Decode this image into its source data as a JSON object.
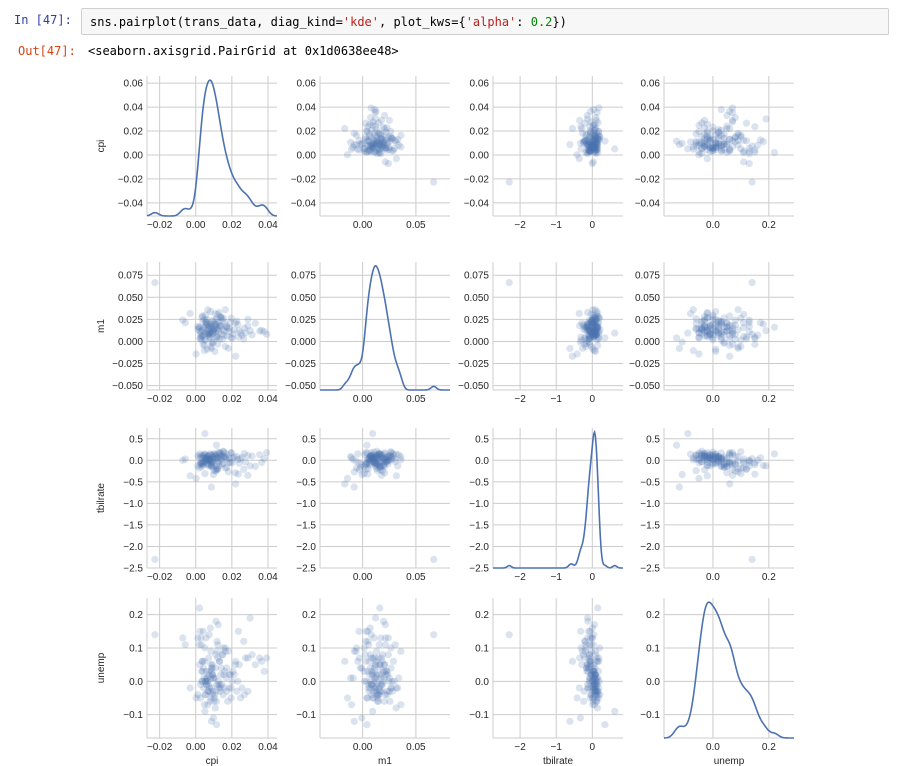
{
  "notebook": {
    "in_prompt": "In  [47]:",
    "code": {
      "p1": "sns.pairplot(trans_data, diag_kind=",
      "s1": "'kde'",
      "p2": ", plot_kws={",
      "s2": "'alpha'",
      "p3": ": ",
      "n1": "0.2",
      "p4": "})"
    },
    "out_prompt": "Out[47]:",
    "output_text": "<seaborn.axisgrid.PairGrid at 0x1d0638ee48>"
  },
  "chart_data": {
    "type": "scatter",
    "variables": [
      "cpi",
      "m1",
      "tbilrate",
      "unemp"
    ],
    "xlabels": [
      "cpi",
      "m1",
      "tbilrate",
      "unemp"
    ],
    "ylabels": [
      "cpi",
      "m1",
      "tbilrate",
      "unemp"
    ],
    "diag_kind": "kde",
    "alpha": 0.2,
    "grid": true,
    "colors": {
      "points": "#4c72b0",
      "line": "#4c72b0",
      "grid": "#cccccc",
      "spine": "#cccccc"
    },
    "x_axes": [
      {
        "lim": [
          -0.027,
          0.045
        ],
        "ticks": [
          -0.02,
          0.0,
          0.02,
          0.04
        ],
        "ticklabels": [
          "−0.02",
          "0.00",
          "0.02",
          "0.04"
        ]
      },
      {
        "lim": [
          -0.04,
          0.082
        ],
        "ticks": [
          0.0,
          0.05
        ],
        "ticklabels": [
          "0.00",
          "0.05"
        ]
      },
      {
        "lim": [
          -2.75,
          0.85
        ],
        "ticks": [
          -2,
          -1,
          0
        ],
        "ticklabels": [
          "−2",
          "−1",
          "0"
        ]
      },
      {
        "lim": [
          -0.175,
          0.29
        ],
        "ticks": [
          0.0,
          0.2
        ],
        "ticklabels": [
          "0.0",
          "0.2"
        ]
      }
    ],
    "y_axes": [
      {
        "lim": [
          -0.051,
          0.066
        ],
        "ticks": [
          -0.04,
          -0.02,
          0.0,
          0.02,
          0.04,
          0.06
        ],
        "ticklabels": [
          "−0.04",
          "−0.02",
          "0.00",
          "0.02",
          "0.04",
          "0.06"
        ]
      },
      {
        "lim": [
          -0.055,
          0.09
        ],
        "ticks": [
          -0.05,
          -0.025,
          0.0,
          0.025,
          0.05,
          0.075
        ],
        "ticklabels": [
          "−0.050",
          "−0.025",
          "0.000",
          "0.025",
          "0.050",
          "0.075"
        ]
      },
      {
        "lim": [
          -2.5,
          0.75
        ],
        "ticks": [
          -2.5,
          -2.0,
          -1.5,
          -1.0,
          -0.5,
          0.0,
          0.5
        ],
        "ticklabels": [
          "−2.5",
          "−2.0",
          "−1.5",
          "−1.0",
          "−0.5",
          "0.0",
          "0.5"
        ]
      },
      {
        "lim": [
          -0.17,
          0.25
        ],
        "ticks": [
          -0.1,
          0.0,
          0.1,
          0.2
        ],
        "ticklabels": [
          "−0.1",
          "0.0",
          "0.1",
          "0.2"
        ]
      }
    ],
    "observations": [
      [
        0.0078,
        0.0052,
        0.02,
        -0.02
      ],
      [
        0.0061,
        0.0124,
        -0.08,
        0.01
      ],
      [
        0.0105,
        0.0231,
        0.06,
        -0.04
      ],
      [
        0.0032,
        0.0014,
        -0.15,
        0.03
      ],
      [
        0.0145,
        0.0083,
        0.12,
        -0.01
      ],
      [
        0.0091,
        0.0165,
        -0.04,
        0.05
      ],
      [
        0.0054,
        0.0298,
        0.03,
        0.0
      ],
      [
        0.0122,
        -0.0031,
        -0.21,
        0.07
      ],
      [
        0.0068,
        0.0102,
        0.09,
        -0.03
      ],
      [
        0.0187,
        0.0152,
        0.04,
        0.02
      ],
      [
        0.0026,
        0.0041,
        -0.06,
        -0.05
      ],
      [
        0.0099,
        0.0201,
        0.15,
        0.01
      ],
      [
        0.0043,
        0.0072,
        -0.11,
        0.04
      ],
      [
        0.0158,
        0.0118,
        0.07,
        -0.02
      ],
      [
        0.0084,
        -0.0062,
        -0.02,
        0.09
      ],
      [
        0.0115,
        0.0256,
        0.11,
        -0.06
      ],
      [
        0.0037,
        0.0134,
        -0.09,
        0.0
      ],
      [
        0.0206,
        0.0085,
        0.05,
        0.03
      ],
      [
        0.0071,
        0.0178,
        -0.13,
        -0.01
      ],
      [
        0.0132,
        0.0029,
        0.18,
        0.06
      ],
      [
        0.0056,
        0.0213,
        -0.03,
        -0.04
      ],
      [
        0.0094,
        0.0097,
        0.08,
        0.02
      ],
      [
        0.0019,
        0.0156,
        -0.18,
        0.11
      ],
      [
        0.0173,
        0.0062,
        0.01,
        -0.03
      ],
      [
        0.0082,
        0.0339,
        0.13,
        0.01
      ],
      [
        0.0241,
        0.0121,
        -0.07,
        0.05
      ],
      [
        0.0048,
        -0.0104,
        0.06,
        -0.07
      ],
      [
        0.0111,
        0.0187,
        -0.25,
        0.08
      ],
      [
        0.0066,
        0.0075,
        0.1,
        0.0
      ],
      [
        0.0139,
        0.0272,
        0.02,
        -0.02
      ],
      [
        0.0029,
        0.0109,
        -0.05,
        0.13
      ],
      [
        0.0196,
        0.0043,
        0.17,
        -0.05
      ],
      [
        0.0087,
        0.0194,
        -0.12,
        0.03
      ],
      [
        0.0124,
        0.0141,
        0.04,
        -0.01
      ],
      [
        0.0051,
        0.0015,
        -0.31,
        0.1
      ],
      [
        0.0227,
        0.0229,
        0.09,
        -0.03
      ],
      [
        0.0073,
        0.0088,
        -0.01,
        0.02
      ],
      [
        0.0108,
        0.0314,
        0.14,
        -0.08
      ],
      [
        0.0035,
        0.0063,
        -0.08,
        0.06
      ],
      [
        0.0168,
        0.0172,
        0.06,
        0.01
      ],
      [
        0.0091,
        -0.0021,
        -0.16,
        0.04
      ],
      [
        0.0152,
        0.0135,
        0.21,
        -0.04
      ],
      [
        0.0062,
        0.0247,
        0.0,
        0.0
      ],
      [
        0.0276,
        0.0098,
        -0.04,
        0.07
      ],
      [
        0.0044,
        0.0158,
        0.11,
        -0.02
      ],
      [
        0.0118,
        0.0051,
        -0.2,
        0.12
      ],
      [
        0.0079,
        0.0203,
        0.03,
        -0.06
      ],
      [
        0.0213,
        0.0129,
        0.08,
        0.02
      ],
      [
        0.0024,
        0.0033,
        -0.1,
        0.15
      ],
      [
        0.0136,
        0.0281,
        0.16,
        -0.03
      ],
      [
        0.0097,
        0.0114,
        -0.06,
        0.01
      ],
      [
        0.0058,
        0.0187,
        0.05,
        -0.01
      ],
      [
        0.0181,
        -0.0078,
        -0.27,
        0.09
      ],
      [
        0.0103,
        0.0143,
        0.12,
        -0.05
      ],
      [
        0.0039,
        0.0227,
        -0.03,
        0.03
      ],
      [
        0.0256,
        0.0069,
        0.07,
        -0.02
      ],
      [
        0.0084,
        0.0162,
        -0.14,
        0.05
      ],
      [
        0.0127,
        0.0107,
        0.19,
        0.0
      ],
      [
        0.0067,
        0.0359,
        0.01,
        -0.07
      ],
      [
        0.0149,
        0.0025,
        -0.09,
        0.08
      ],
      [
        0.0012,
        0.0137,
        0.1,
        -0.04
      ],
      [
        0.0192,
        0.0219,
        -0.05,
        0.02
      ],
      [
        0.0075,
        0.0081,
        0.04,
        0.14
      ],
      [
        0.0114,
        0.0168,
        -0.22,
        -0.03
      ],
      [
        0.0049,
        -0.0046,
        0.15,
        0.06
      ],
      [
        0.0233,
        0.0193,
        0.02,
        0.0
      ],
      [
        0.0088,
        0.0126,
        -0.11,
        -0.02
      ],
      [
        0.0141,
        0.0267,
        0.08,
        0.04
      ],
      [
        0.0032,
        0.0056,
        -0.07,
        0.11
      ],
      [
        0.0177,
        0.0148,
        0.13,
        -0.06
      ],
      [
        0.0093,
        0.0236,
        -0.02,
        0.02
      ],
      [
        0.0061,
        0.0091,
        0.06,
        -0.01
      ],
      [
        0.0289,
        0.0177,
        -0.35,
        0.07
      ],
      [
        0.0106,
        -0.0113,
        0.09,
        0.01
      ],
      [
        0.0052,
        0.0154,
        -0.04,
        -0.04
      ],
      [
        0.0161,
        0.0209,
        0.17,
        0.03
      ],
      [
        0.0081,
        0.0072,
        0.0,
        0.16
      ],
      [
        0.0129,
        0.0329,
        -0.13,
        -0.02
      ],
      [
        0.0022,
        0.0117,
        0.05,
        0.05
      ],
      [
        0.0202,
        0.0037,
        -0.06,
        0.0
      ],
      [
        0.0069,
        0.0184,
        0.11,
        -0.03
      ],
      [
        0.0119,
        0.0131,
        -0.19,
        0.09
      ],
      [
        0.0046,
        0.0251,
        0.07,
        0.01
      ],
      [
        0.0248,
        0.0094,
        0.03,
        -0.05
      ],
      [
        0.0089,
        -0.0008,
        -0.09,
        0.04
      ],
      [
        0.0134,
        0.0171,
        0.14,
        -0.01
      ],
      [
        0.0057,
        0.0215,
        -0.01,
        0.13
      ],
      [
        0.0155,
        0.0066,
        0.08,
        0.02
      ],
      [
        0.0101,
        0.0139,
        -0.24,
        -0.06
      ],
      [
        0.0038,
        0.0289,
        0.12,
        0.06
      ],
      [
        0.0185,
        0.0112,
        -0.05,
        -0.02
      ],
      [
        0.0076,
        0.0046,
        0.04,
        0.03
      ],
      [
        0.0112,
        0.0197,
        -0.12,
        0.18
      ],
      [
        0.0269,
        0.0151,
        0.16,
        -0.04
      ],
      [
        0.0064,
        -0.0089,
        0.02,
        0.01
      ],
      [
        0.0147,
        0.0241,
        -0.08,
        0.08
      ],
      [
        0.0027,
        0.0079,
        0.1,
        -0.01
      ],
      [
        0.0171,
        0.0166,
        -0.16,
        0.04
      ],
      [
        0.0095,
        0.0124,
        0.06,
        -0.03
      ],
      [
        0.0122,
        0.0306,
        -0.03,
        0.11
      ],
      [
        0.0053,
        0.0019,
        0.13,
        0.0
      ],
      [
        0.0219,
        0.0207,
        -0.29,
        0.05
      ],
      [
        0.0083,
        0.0101,
        0.01,
        -0.05
      ],
      [
        0.0138,
        0.0176,
        0.09,
        0.02
      ],
      [
        0.0041,
        -0.0033,
        -0.06,
        0.15
      ],
      [
        0.0197,
        0.0264,
        0.18,
        -0.02
      ],
      [
        0.0072,
        0.0145,
        -0.1,
        0.07
      ],
      [
        0.0117,
        0.0058,
        0.05,
        -0.01
      ],
      [
        0.0059,
        0.0224,
        0.02,
        0.03
      ],
      [
        0.0301,
        0.0122,
        -0.13,
        0.19
      ],
      [
        0.0092,
        0.0086,
        0.12,
        -0.04
      ],
      [
        0.0131,
        0.0183,
        -0.04,
        0.06
      ],
      [
        0.0034,
        0.0276,
        0.07,
        0.0
      ],
      [
        0.0164,
        -0.0057,
        -0.18,
        0.1
      ],
      [
        0.0078,
        0.0161,
        0.15,
        -0.03
      ],
      [
        0.0109,
        0.0108,
        0.03,
        0.04
      ],
      [
        0.0266,
        0.0029,
        -0.21,
        0.12
      ],
      [
        0.0125,
        0.0213,
        0.06,
        0.17
      ],
      [
        0.0011,
        0.0171,
        -0.13,
        0.13
      ],
      [
        0.0312,
        0.0075,
        0.1,
        0.08
      ],
      [
        0.0236,
        0.0048,
        -0.32,
        0.15
      ],
      [
        0.0153,
        0.0265,
        0.2,
        0.1
      ],
      [
        0.0002,
        -0.0142,
        -0.42,
        -0.05
      ],
      [
        0.0221,
        -0.0168,
        -0.55,
        0.06
      ],
      [
        0.0354,
        0.0118,
        0.13,
        0.07
      ],
      [
        0.0379,
        0.0112,
        0.04,
        0.03
      ],
      [
        0.033,
        0.0206,
        -0.14,
        0.05
      ],
      [
        0.0289,
        0.0251,
        0.11,
        -0.03
      ],
      [
        -0.0031,
        0.0317,
        -0.36,
        -0.02
      ],
      [
        -0.0072,
        0.0242,
        0.0,
        0.13
      ],
      [
        0.0393,
        0.008,
        0.18,
        0.07
      ],
      [
        0.0365,
        0.0126,
        -0.05,
        0.06
      ],
      [
        -0.0058,
        0.0213,
        0.03,
        0.11
      ],
      [
        0.0087,
        -0.0079,
        -0.62,
        -0.12
      ],
      [
        0.0164,
        0.0359,
        0.08,
        0.09
      ],
      [
        -0.0226,
        0.0667,
        -2.3,
        0.14
      ],
      [
        0.0051,
        0.0094,
        0.62,
        -0.09
      ],
      [
        0.0021,
        0.0161,
        0.15,
        0.22
      ],
      [
        0.0115,
        0.004,
        0.35,
        -0.13
      ],
      [
        0.0098,
        -0.0007,
        -0.33,
        -0.11
      ]
    ]
  }
}
